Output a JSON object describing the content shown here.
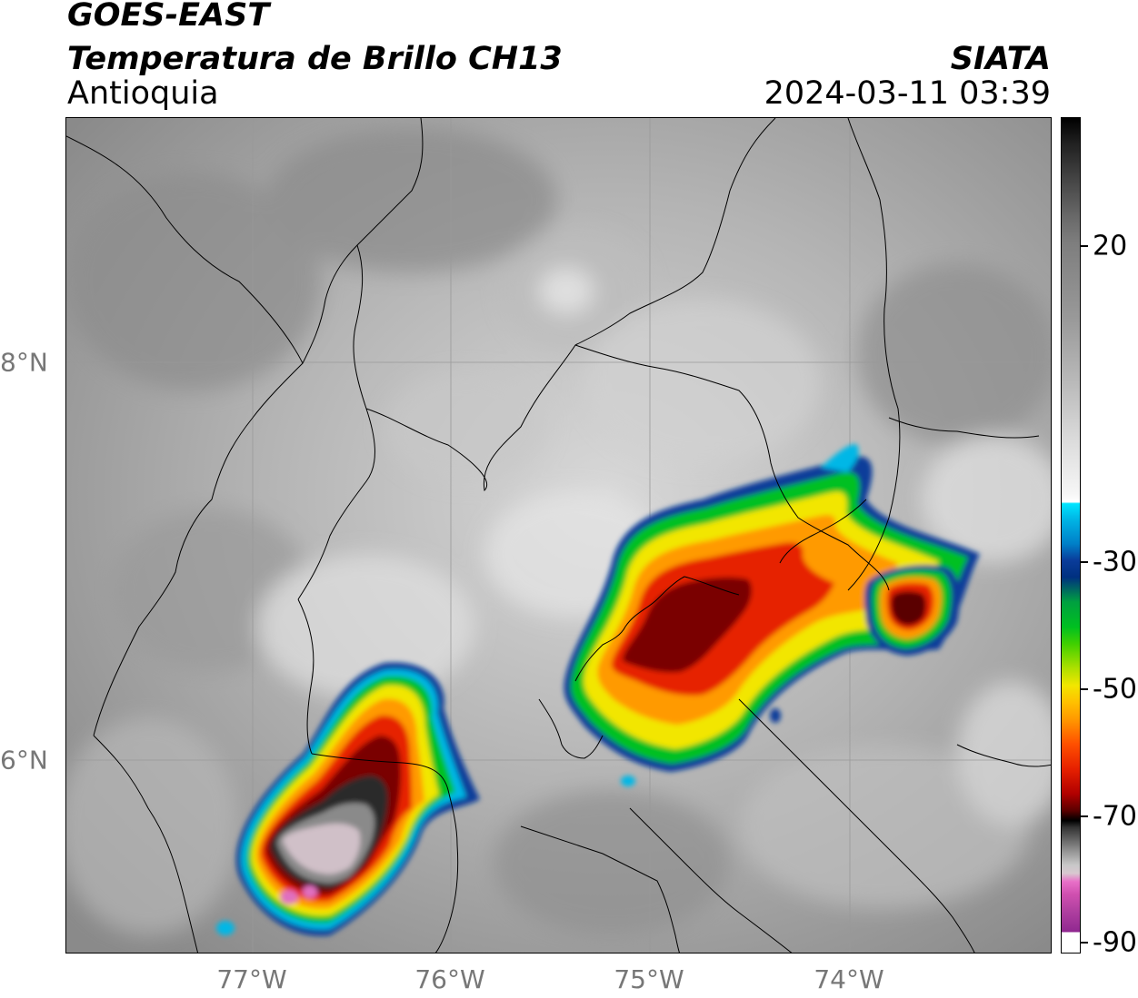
{
  "header": {
    "satellite": "GOES-EAST",
    "product": "Temperatura de Brillo CH13",
    "region": "Antioquia",
    "organization": "SIATA",
    "datetime": "2024-03-11 03:39"
  },
  "map": {
    "lat_ticks": [
      "8°N",
      "6°N"
    ],
    "lon_ticks": [
      "77°W",
      "76°W",
      "75°W",
      "74°W"
    ]
  },
  "colorbar": {
    "ticks": [
      "20",
      "-30",
      "-50",
      "-70",
      "-90"
    ]
  }
}
